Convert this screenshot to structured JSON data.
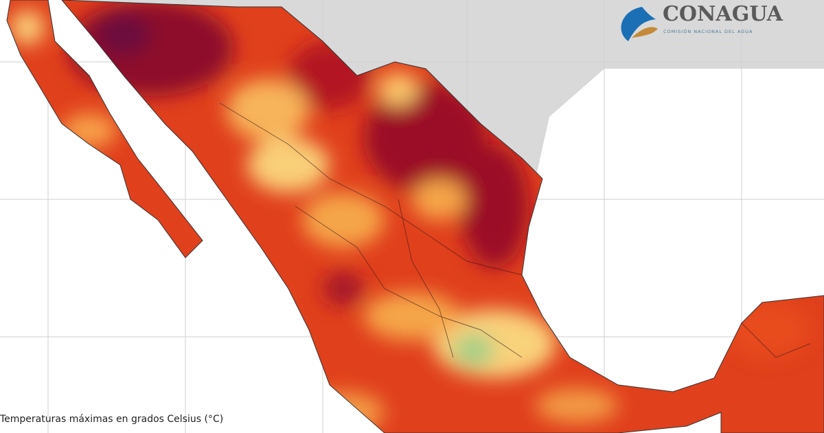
{
  "logo": {
    "name": "CONAGUA",
    "subtitle": "COMISIÓN NACIONAL DEL AGUA"
  },
  "caption": "Temperaturas máximas en grados Celsius (°C)"
}
